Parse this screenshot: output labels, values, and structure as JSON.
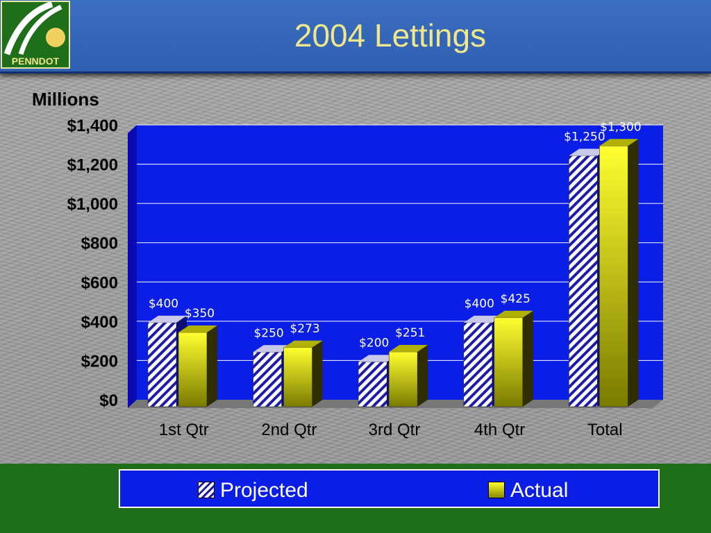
{
  "header": {
    "title": "2004 Lettings",
    "logo_text": "PENNDOT"
  },
  "colors": {
    "plot_bg": "#0a1ee6",
    "projected_stripe": "#1c1ca8",
    "actual_top": "#ffff30",
    "actual_bottom": "#7a7a00",
    "title": "#f0e68c",
    "footer": "#1e6e1a"
  },
  "chart_data": {
    "type": "bar",
    "title": "",
    "ylabel": "Millions",
    "xlabel": "",
    "categories": [
      "1st Qtr",
      "2nd Qtr",
      "3rd Qtr",
      "4th Qtr",
      "Total"
    ],
    "series": [
      {
        "name": "Projected",
        "values": [
          400,
          250,
          200,
          400,
          1250
        ],
        "labels": [
          "$400",
          "$250",
          "$200",
          "$400",
          "$1,250"
        ]
      },
      {
        "name": "Actual",
        "values": [
          350,
          273,
          251,
          425,
          1300
        ],
        "labels": [
          "$350",
          "$273",
          "$251",
          "$425",
          "$1,300"
        ]
      }
    ],
    "ylim": [
      0,
      1400
    ],
    "yticks": [
      0,
      200,
      400,
      600,
      800,
      1000,
      1200,
      1400
    ],
    "ytick_labels": [
      "$0",
      "$200",
      "$400",
      "$600",
      "$800",
      "$1,000",
      "$1,200",
      "$1,400"
    ],
    "grid": true,
    "legend": "bottom"
  }
}
